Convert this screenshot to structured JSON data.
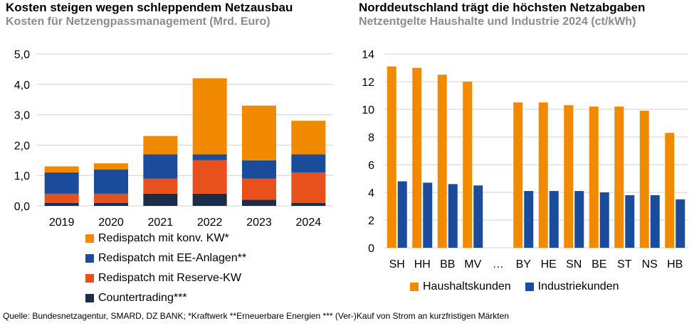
{
  "colors": {
    "orange": "#F28A00",
    "blue": "#1B4C9B",
    "red": "#E8501C",
    "navy": "#1C2D4A",
    "grid": "#d0d0d0",
    "subtitle_gray": "#8c8c8c"
  },
  "left": {
    "title": "Kosten steigen wegen schleppendem Netzausbau",
    "subtitle": "Kosten für Netzengpassmanagement (Mrd. Euro)",
    "legend": [
      {
        "label": "Redispatch mit konv. KW*",
        "color": "#F28A00"
      },
      {
        "label": "Redispatch mit EE-Anlagen**",
        "color": "#1B4C9B"
      },
      {
        "label": "Redispatch mit Reserve-KW",
        "color": "#E8501C"
      },
      {
        "label": "Countertrading***",
        "color": "#1C2D4A"
      }
    ]
  },
  "right": {
    "title": "Norddeutschland trägt die höchsten Netzabgaben",
    "subtitle": "Netzentgelte Haushalte und Industrie 2024 (ct/kWh)",
    "legend": [
      {
        "label": "Haushaltskunden",
        "color": "#F28A00"
      },
      {
        "label": "Industriekunden",
        "color": "#1B4C9B"
      }
    ]
  },
  "source": "Quelle: Bundesnetzagentur, SMARD, DZ BANK; *Kraftwerk **Erneuerbare Energien *** (Ver-)Kauf von Strom an kurzfristigen Märkten",
  "chart_data": [
    {
      "type": "bar",
      "stacked": true,
      "title": "Kosten steigen wegen schleppendem Netzausbau",
      "subtitle": "Kosten für Netzengpassmanagement (Mrd. Euro)",
      "categories": [
        "2019",
        "2020",
        "2021",
        "2022",
        "2023",
        "2024"
      ],
      "ylim": [
        0,
        5
      ],
      "yticks": [
        "0,0",
        "1,0",
        "2,0",
        "3,0",
        "4,0",
        "5,0"
      ],
      "grid": true,
      "legend_position": "bottom",
      "series": [
        {
          "name": "Countertrading***",
          "color": "#1C2D4A",
          "values": [
            0.1,
            0.1,
            0.4,
            0.4,
            0.2,
            0.1
          ]
        },
        {
          "name": "Redispatch mit Reserve-KW",
          "color": "#E8501C",
          "values": [
            0.3,
            0.3,
            0.5,
            1.1,
            0.7,
            1.0
          ]
        },
        {
          "name": "Redispatch mit EE-Anlagen**",
          "color": "#1B4C9B",
          "values": [
            0.7,
            0.8,
            0.8,
            0.2,
            0.6,
            0.6
          ]
        },
        {
          "name": "Redispatch mit konv. KW*",
          "color": "#F28A00",
          "values": [
            0.2,
            0.2,
            0.6,
            2.5,
            1.8,
            1.1
          ]
        }
      ]
    },
    {
      "type": "bar",
      "stacked": false,
      "title": "Norddeutschland trägt die höchsten Netzabgaben",
      "subtitle": "Netzentgelte Haushalte und Industrie 2024 (ct/kWh)",
      "categories": [
        "SH",
        "HH",
        "BB",
        "MV",
        "…",
        "BY",
        "HE",
        "SN",
        "BE",
        "ST",
        "NS",
        "HB"
      ],
      "ylim": [
        0,
        14
      ],
      "yticks": [
        "0",
        "2",
        "4",
        "6",
        "8",
        "10",
        "12",
        "14"
      ],
      "grid": true,
      "legend_position": "bottom",
      "series": [
        {
          "name": "Haushaltskunden",
          "color": "#F28A00",
          "values": [
            13.1,
            13.0,
            12.5,
            12.0,
            null,
            10.5,
            10.5,
            10.3,
            10.2,
            10.2,
            9.9,
            8.3
          ]
        },
        {
          "name": "Industriekunden",
          "color": "#1B4C9B",
          "values": [
            4.8,
            4.7,
            4.6,
            4.5,
            null,
            4.1,
            4.1,
            4.1,
            4.0,
            3.8,
            3.8,
            3.5
          ]
        }
      ]
    }
  ]
}
